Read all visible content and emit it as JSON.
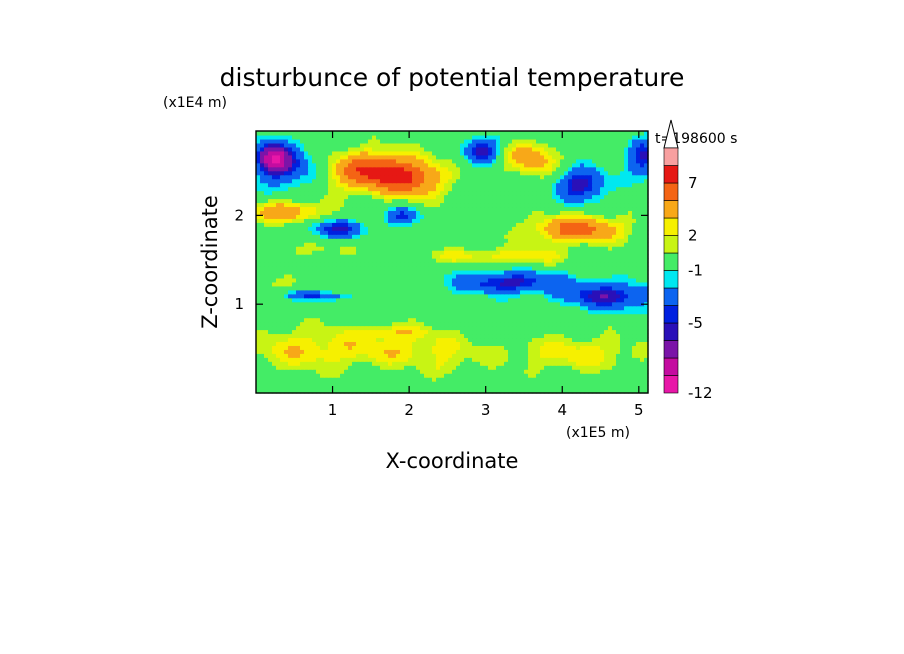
{
  "chart_data": {
    "type": "heatmap",
    "title": "disturbunce of potential temperature",
    "time_label": "t=198600 s",
    "x_axis": {
      "label": "X-coordinate",
      "unit_label": "(x1E5 m)",
      "ticks": [
        1,
        2,
        3,
        4,
        5
      ],
      "tick_labels": [
        "1",
        "2",
        "3",
        "4",
        "5"
      ],
      "range": [
        0,
        5.12
      ]
    },
    "y_axis": {
      "label": "Z-coordinate",
      "unit_label": "(x1E4 m)",
      "ticks": [
        1,
        2
      ],
      "tick_labels": [
        "1",
        "2"
      ],
      "range": [
        0,
        2.95
      ]
    },
    "colorbar": {
      "levels": [
        -12,
        -10,
        -8,
        -6,
        -5,
        -4,
        -2,
        -1,
        1,
        2,
        3,
        5,
        7,
        9
      ],
      "tick_values": [
        -12,
        -5,
        -1,
        2,
        7
      ],
      "tick_labels": [
        "-12",
        "-5",
        "-1",
        "2",
        "7"
      ],
      "colors": [
        "#e817a8",
        "#c40ca0",
        "#7b14a8",
        "#2a10b8",
        "#0020e0",
        "#0c64f0",
        "#00e8f0",
        "#44ec66",
        "#c8f414",
        "#f6f000",
        "#f8a818",
        "#f46414",
        "#e61814",
        "#f8a0a0"
      ],
      "over_color": "#ffffff"
    },
    "field_features": [
      {
        "x": 0.2,
        "z": 2.65,
        "v": -8,
        "sx": 0.22,
        "sz": 0.18
      },
      {
        "x": 0.45,
        "z": 2.55,
        "v": -4,
        "sx": 0.35,
        "sz": 0.25
      },
      {
        "x": 1.55,
        "z": 2.5,
        "v": 7.5,
        "sx": 0.55,
        "sz": 0.22
      },
      {
        "x": 2.1,
        "z": 2.4,
        "v": 4.5,
        "sx": 0.4,
        "sz": 0.2
      },
      {
        "x": 2.95,
        "z": 2.75,
        "v": -5.5,
        "sx": 0.22,
        "sz": 0.15
      },
      {
        "x": 3.6,
        "z": 2.65,
        "v": 4,
        "sx": 0.35,
        "sz": 0.2
      },
      {
        "x": 4.25,
        "z": 2.35,
        "v": -6,
        "sx": 0.3,
        "sz": 0.18
      },
      {
        "x": 5.05,
        "z": 2.65,
        "v": -5,
        "sx": 0.2,
        "sz": 0.22
      },
      {
        "x": 0.4,
        "z": 2.05,
        "v": 4.5,
        "sx": 0.5,
        "sz": 0.12
      },
      {
        "x": 1.05,
        "z": 1.85,
        "v": -5,
        "sx": 0.35,
        "sz": 0.1
      },
      {
        "x": 1.9,
        "z": 2.0,
        "v": -4,
        "sx": 0.25,
        "sz": 0.1
      },
      {
        "x": 4.2,
        "z": 1.85,
        "v": 6,
        "sx": 0.6,
        "sz": 0.15
      },
      {
        "x": 3.5,
        "z": 1.55,
        "v": 2.5,
        "sx": 0.55,
        "sz": 0.1
      },
      {
        "x": 2.6,
        "z": 1.55,
        "v": 2,
        "sx": 0.5,
        "sz": 0.08
      },
      {
        "x": 0.7,
        "z": 1.62,
        "v": 1.5,
        "sx": 0.5,
        "sz": 0.08
      },
      {
        "x": 3.3,
        "z": 1.25,
        "v": -5.5,
        "sx": 0.7,
        "sz": 0.12
      },
      {
        "x": 4.6,
        "z": 1.1,
        "v": -5.5,
        "sx": 0.6,
        "sz": 0.15
      },
      {
        "x": 0.8,
        "z": 1.1,
        "v": -4,
        "sx": 0.4,
        "sz": 0.05
      },
      {
        "x": 0.3,
        "z": 1.25,
        "v": 1.5,
        "sx": 0.3,
        "sz": 0.08
      },
      {
        "x": 2.0,
        "z": 0.5,
        "v": 2.5,
        "sx": 0.9,
        "sz": 0.2
      },
      {
        "x": 4.2,
        "z": 0.45,
        "v": 2.5,
        "sx": 0.9,
        "sz": 0.2
      },
      {
        "x": 0.6,
        "z": 0.5,
        "v": 2.5,
        "sx": 0.8,
        "sz": 0.25
      },
      {
        "x": 2.5,
        "z": 0.3,
        "v": 1.2,
        "sx": 0.25,
        "sz": 0.12
      },
      {
        "x": 1.8,
        "z": 0.7,
        "v": 2,
        "sx": 0.5,
        "sz": 0.08
      }
    ]
  }
}
